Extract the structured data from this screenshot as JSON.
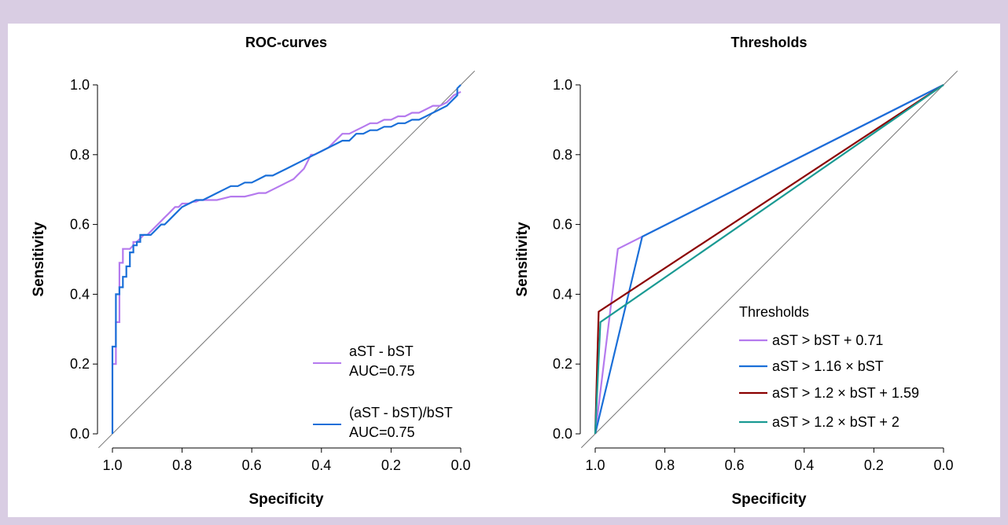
{
  "colors": {
    "frame_background": "#d9cde3",
    "purple": "#b57aee",
    "blue": "#1a6fd8",
    "darkred": "#8b0000",
    "teal": "#1a9a93",
    "diagonal": "#777777"
  },
  "chart_data": [
    {
      "type": "line",
      "title": "ROC-curves",
      "xlabel": "Specificity",
      "ylabel": "Sensitivity",
      "x_reversed": true,
      "xlim": [
        1.0,
        0.0
      ],
      "ylim": [
        0.0,
        1.0
      ],
      "xticks": [
        "1.0",
        "0.8",
        "0.6",
        "0.4",
        "0.2",
        "0.0"
      ],
      "yticks": [
        "0.0",
        "0.2",
        "0.4",
        "0.6",
        "0.8",
        "1.0"
      ],
      "grid": false,
      "legend_position": "bottom-right",
      "reference_line": "diagonal",
      "series": [
        {
          "name": "aST - bST",
          "label_line1": "aST - bST",
          "label_line2": "AUC=0.75",
          "color": "#b57aee",
          "x": [
            1.0,
            0.99,
            0.99,
            0.98,
            0.98,
            0.97,
            0.97,
            0.96,
            0.96,
            0.95,
            0.94,
            0.94,
            0.93,
            0.92,
            0.91,
            0.9,
            0.89,
            0.88,
            0.87,
            0.86,
            0.85,
            0.84,
            0.83,
            0.82,
            0.81,
            0.8,
            0.79,
            0.78,
            0.77,
            0.76,
            0.75,
            0.74,
            0.72,
            0.7,
            0.68,
            0.66,
            0.64,
            0.62,
            0.6,
            0.58,
            0.56,
            0.54,
            0.52,
            0.5,
            0.48,
            0.47,
            0.46,
            0.45,
            0.44,
            0.43,
            0.42,
            0.4,
            0.38,
            0.36,
            0.34,
            0.32,
            0.3,
            0.28,
            0.26,
            0.24,
            0.22,
            0.2,
            0.18,
            0.16,
            0.14,
            0.12,
            0.1,
            0.08,
            0.06,
            0.04,
            0.02,
            0.0
          ],
          "y": [
            0.2,
            0.2,
            0.32,
            0.32,
            0.49,
            0.49,
            0.53,
            0.53,
            0.53,
            0.53,
            0.54,
            0.55,
            0.55,
            0.56,
            0.57,
            0.57,
            0.58,
            0.59,
            0.6,
            0.61,
            0.62,
            0.63,
            0.64,
            0.65,
            0.65,
            0.66,
            0.66,
            0.66,
            0.665,
            0.665,
            0.67,
            0.67,
            0.67,
            0.67,
            0.675,
            0.68,
            0.68,
            0.68,
            0.685,
            0.69,
            0.69,
            0.7,
            0.71,
            0.72,
            0.73,
            0.74,
            0.75,
            0.76,
            0.78,
            0.8,
            0.8,
            0.81,
            0.82,
            0.84,
            0.86,
            0.86,
            0.87,
            0.88,
            0.89,
            0.89,
            0.9,
            0.9,
            0.91,
            0.91,
            0.92,
            0.92,
            0.93,
            0.94,
            0.94,
            0.95,
            0.97,
            0.98
          ]
        },
        {
          "name": "(aST - bST)/bST",
          "label_line1": "(aST - bST)/bST",
          "label_line2": "AUC=0.75",
          "color": "#1a6fd8",
          "x": [
            1.0,
            1.0,
            0.99,
            0.99,
            0.98,
            0.98,
            0.97,
            0.97,
            0.96,
            0.96,
            0.95,
            0.95,
            0.94,
            0.94,
            0.93,
            0.93,
            0.92,
            0.92,
            0.91,
            0.9,
            0.89,
            0.88,
            0.87,
            0.86,
            0.85,
            0.84,
            0.82,
            0.8,
            0.78,
            0.76,
            0.74,
            0.72,
            0.7,
            0.68,
            0.66,
            0.64,
            0.62,
            0.6,
            0.58,
            0.56,
            0.54,
            0.52,
            0.5,
            0.48,
            0.46,
            0.44,
            0.42,
            0.4,
            0.38,
            0.36,
            0.34,
            0.32,
            0.3,
            0.28,
            0.26,
            0.24,
            0.22,
            0.2,
            0.18,
            0.16,
            0.14,
            0.12,
            0.1,
            0.08,
            0.06,
            0.04,
            0.02,
            0.01,
            0.01,
            0.0
          ],
          "y": [
            0.0,
            0.25,
            0.25,
            0.4,
            0.4,
            0.42,
            0.42,
            0.45,
            0.45,
            0.48,
            0.48,
            0.52,
            0.52,
            0.54,
            0.54,
            0.55,
            0.55,
            0.57,
            0.57,
            0.57,
            0.57,
            0.58,
            0.59,
            0.6,
            0.6,
            0.61,
            0.63,
            0.65,
            0.66,
            0.67,
            0.67,
            0.68,
            0.69,
            0.7,
            0.71,
            0.71,
            0.72,
            0.72,
            0.73,
            0.74,
            0.74,
            0.75,
            0.76,
            0.77,
            0.78,
            0.79,
            0.8,
            0.81,
            0.82,
            0.83,
            0.84,
            0.84,
            0.86,
            0.86,
            0.87,
            0.87,
            0.88,
            0.88,
            0.89,
            0.89,
            0.9,
            0.9,
            0.91,
            0.92,
            0.93,
            0.94,
            0.96,
            0.97,
            0.99,
            1.0
          ]
        }
      ]
    },
    {
      "type": "line",
      "title": "Thresholds",
      "xlabel": "Specificity",
      "ylabel": "Sensitivity",
      "x_reversed": true,
      "xlim": [
        1.0,
        0.0
      ],
      "ylim": [
        0.0,
        1.0
      ],
      "xticks": [
        "1.0",
        "0.8",
        "0.6",
        "0.4",
        "0.2",
        "0.0"
      ],
      "yticks": [
        "0.0",
        "0.2",
        "0.4",
        "0.6",
        "0.8",
        "1.0"
      ],
      "grid": false,
      "legend_title": "Thresholds",
      "legend_position": "bottom-right",
      "reference_line": "diagonal",
      "series": [
        {
          "name": "aST > bST + 0.71",
          "color": "#b57aee",
          "x": [
            1.0,
            0.935,
            0.0
          ],
          "y": [
            0.0,
            0.53,
            1.0
          ]
        },
        {
          "name": "aST > 1.16 × bST",
          "color": "#1a6fd8",
          "x": [
            1.0,
            0.865,
            0.0
          ],
          "y": [
            0.0,
            0.565,
            1.0
          ]
        },
        {
          "name": "aST > 1.2 × bST + 1.59",
          "color": "#8b0000",
          "x": [
            1.0,
            0.99,
            0.0
          ],
          "y": [
            0.0,
            0.35,
            1.0
          ]
        },
        {
          "name": "aST > 1.2 × bST + 2",
          "color": "#1a9a93",
          "x": [
            1.0,
            0.985,
            0.0
          ],
          "y": [
            0.0,
            0.32,
            1.0
          ]
        }
      ]
    }
  ]
}
